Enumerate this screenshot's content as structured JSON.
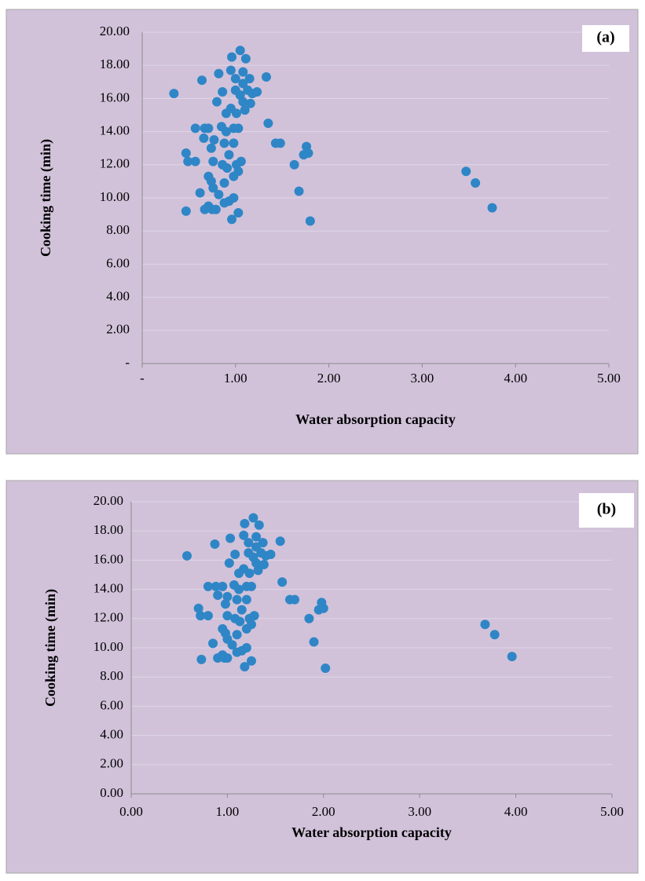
{
  "chart_data": [
    {
      "type": "scatter",
      "annotation": "(a)",
      "x_label": "Water absorption capacity",
      "y_label": "Cooking time (min)",
      "color": "#2f86c6",
      "grid": true,
      "xlim": [
        0,
        5
      ],
      "ylim": [
        0,
        20
      ],
      "xticks": [
        {
          "value": 0,
          "label": "-"
        },
        {
          "value": 1,
          "label": "1.00"
        },
        {
          "value": 2,
          "label": "2.00"
        },
        {
          "value": 3,
          "label": "3.00"
        },
        {
          "value": 4,
          "label": "4.00"
        },
        {
          "value": 5,
          "label": "5.00"
        }
      ],
      "yticks": [
        {
          "value": 0,
          "label": "-"
        },
        {
          "value": 2,
          "label": "2.00"
        },
        {
          "value": 4,
          "label": "4.00"
        },
        {
          "value": 6,
          "label": "6.00"
        },
        {
          "value": 8,
          "label": "8.00"
        },
        {
          "value": 10,
          "label": "10.00"
        },
        {
          "value": 12,
          "label": "12.00"
        },
        {
          "value": 14,
          "label": "14.00"
        },
        {
          "value": 16,
          "label": "16.00"
        },
        {
          "value": 18,
          "label": "18.00"
        },
        {
          "value": 20,
          "label": "20.00"
        }
      ],
      "x": [
        0.34,
        0.47,
        0.49,
        0.47,
        0.57,
        0.57,
        0.62,
        0.64,
        0.67,
        0.66,
        0.67,
        0.71,
        0.71,
        0.71,
        0.75,
        0.74,
        0.74,
        0.77,
        0.76,
        0.76,
        0.79,
        0.8,
        0.82,
        0.82,
        0.85,
        0.86,
        0.86,
        0.88,
        0.88,
        0.88,
        0.9,
        0.9,
        0.91,
        0.93,
        0.93,
        0.95,
        0.95,
        0.96,
        0.96,
        0.98,
        0.98,
        0.98,
        0.98,
        1.0,
        1.0,
        1.01,
        1.01,
        1.03,
        1.03,
        1.03,
        1.05,
        1.05,
        1.06,
        1.08,
        1.08,
        1.08,
        1.1,
        1.11,
        1.13,
        1.15,
        1.16,
        1.18,
        1.23,
        1.33,
        1.35,
        1.43,
        1.48,
        1.63,
        1.68,
        1.73,
        1.76,
        1.78,
        1.8,
        3.47,
        3.57,
        3.75
      ],
      "y": [
        16.3,
        12.7,
        12.2,
        9.2,
        14.2,
        12.2,
        10.3,
        17.1,
        14.2,
        13.6,
        9.3,
        14.2,
        11.3,
        9.5,
        9.3,
        13.0,
        11.0,
        13.5,
        12.2,
        10.6,
        9.3,
        15.8,
        17.5,
        10.2,
        14.3,
        12.0,
        16.4,
        13.3,
        10.9,
        9.7,
        14.0,
        15.1,
        11.8,
        12.6,
        9.8,
        15.4,
        17.7,
        8.7,
        18.5,
        14.2,
        13.3,
        11.3,
        10.0,
        17.2,
        16.5,
        12.0,
        15.1,
        9.1,
        14.2,
        11.6,
        18.9,
        16.2,
        12.2,
        17.6,
        15.8,
        16.9,
        15.3,
        18.4,
        16.5,
        17.2,
        15.7,
        16.3,
        16.4,
        17.3,
        14.5,
        13.3,
        13.3,
        12.0,
        10.4,
        12.6,
        13.1,
        12.7,
        8.6,
        11.6,
        10.9,
        9.4
      ]
    },
    {
      "type": "scatter",
      "annotation": "(b)",
      "x_label": "Water absorption capacity",
      "y_label": "Cooking time (min)",
      "color": "#2f86c6",
      "grid": true,
      "xlim": [
        0,
        5
      ],
      "ylim": [
        0,
        20
      ],
      "xticks": [
        {
          "value": 0,
          "label": "0.00"
        },
        {
          "value": 1,
          "label": "1.00"
        },
        {
          "value": 2,
          "label": "2.00"
        },
        {
          "value": 3,
          "label": "3.00"
        },
        {
          "value": 4,
          "label": "4.00"
        },
        {
          "value": 5,
          "label": "5.00"
        }
      ],
      "yticks": [
        {
          "value": 0,
          "label": "0.00"
        },
        {
          "value": 2,
          "label": "2.00"
        },
        {
          "value": 4,
          "label": "4.00"
        },
        {
          "value": 6,
          "label": "6.00"
        },
        {
          "value": 8,
          "label": "8.00"
        },
        {
          "value": 10,
          "label": "10.00"
        },
        {
          "value": 12,
          "label": "12.00"
        },
        {
          "value": 14,
          "label": "14.00"
        },
        {
          "value": 16,
          "label": "16.00"
        },
        {
          "value": 18,
          "label": "18.00"
        },
        {
          "value": 20,
          "label": "20.00"
        }
      ],
      "x": [
        0.58,
        0.7,
        0.72,
        0.73,
        0.8,
        0.8,
        0.85,
        0.87,
        0.88,
        0.9,
        0.9,
        0.95,
        0.95,
        0.95,
        0.97,
        0.98,
        0.98,
        1.0,
        1.0,
        1.0,
        1.0,
        1.02,
        1.03,
        1.05,
        1.07,
        1.08,
        1.08,
        1.1,
        1.1,
        1.1,
        1.12,
        1.12,
        1.13,
        1.15,
        1.15,
        1.17,
        1.17,
        1.18,
        1.18,
        1.2,
        1.2,
        1.2,
        1.2,
        1.22,
        1.22,
        1.23,
        1.23,
        1.25,
        1.25,
        1.25,
        1.27,
        1.27,
        1.28,
        1.3,
        1.3,
        1.3,
        1.32,
        1.33,
        1.35,
        1.37,
        1.38,
        1.4,
        1.45,
        1.55,
        1.57,
        1.65,
        1.7,
        1.85,
        1.9,
        1.95,
        1.98,
        2.0,
        2.02,
        3.68,
        3.78,
        3.96
      ],
      "y": [
        16.3,
        12.7,
        12.2,
        9.2,
        14.2,
        12.2,
        10.3,
        17.1,
        14.2,
        13.6,
        9.3,
        14.2,
        11.3,
        9.5,
        9.3,
        13.0,
        11.0,
        13.5,
        12.2,
        10.6,
        9.3,
        15.8,
        17.5,
        10.2,
        14.3,
        12.0,
        16.4,
        13.3,
        10.9,
        9.7,
        14.0,
        15.1,
        11.8,
        12.6,
        9.8,
        15.4,
        17.7,
        8.7,
        18.5,
        14.2,
        13.3,
        11.3,
        10.0,
        17.2,
        16.5,
        12.0,
        15.1,
        9.1,
        14.2,
        11.6,
        18.9,
        16.2,
        12.2,
        17.6,
        15.8,
        16.9,
        15.3,
        18.4,
        16.5,
        17.2,
        15.7,
        16.3,
        16.4,
        17.3,
        14.5,
        13.3,
        13.3,
        12.0,
        10.4,
        12.6,
        13.1,
        12.7,
        8.6,
        11.6,
        10.9,
        9.4
      ]
    }
  ]
}
